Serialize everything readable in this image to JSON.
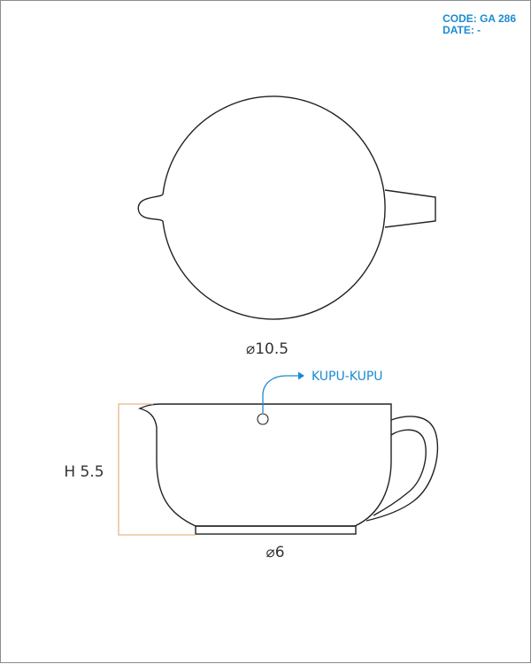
{
  "header": {
    "code_line": "CODE: GA 286",
    "date_line": "DATE: -"
  },
  "top_view": {
    "diameter_label": "⌀10.5"
  },
  "side_view": {
    "height_label": "H 5.5",
    "base_diameter_label": "⌀6",
    "callout_label": "KUPU-KUPU"
  },
  "colors": {
    "accent": "#1a8bd0",
    "dimension_line": "#e8b886",
    "outline": "#222222"
  },
  "icons": {
    "diameter_symbol": "diameter-icon",
    "callout_arrow": "arrow-right-icon",
    "marker": "circle-marker-icon"
  }
}
